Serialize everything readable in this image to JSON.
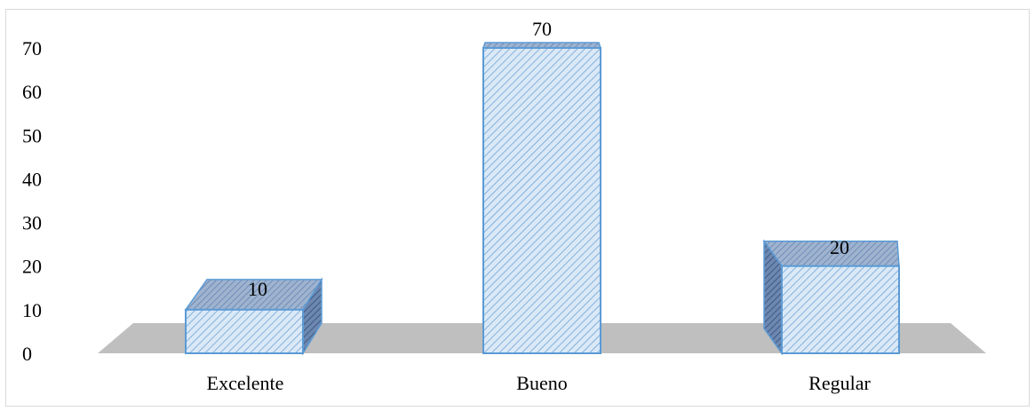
{
  "chart_data": {
    "type": "bar",
    "style": "3d-column",
    "title": "",
    "xlabel": "",
    "ylabel": "",
    "categories": [
      "Excelente",
      "Bueno",
      "Regular"
    ],
    "values": [
      10,
      70,
      20
    ],
    "data_labels": [
      "10",
      "70",
      "20"
    ],
    "ylim": [
      0,
      70
    ],
    "y_ticks": [
      "0",
      "10",
      "20",
      "30",
      "40",
      "50",
      "60",
      "70"
    ],
    "grid": false,
    "legend": "none",
    "colors": {
      "bar_fill": "#dbe8f6",
      "bar_hatch": "#5b9bd5",
      "bar_edge": "#5b9bd5",
      "bar_top": "#8faad9",
      "bar_side": "#4a6fa5",
      "floor": "#bfbfbf",
      "frame": "#d9d9d9"
    }
  }
}
